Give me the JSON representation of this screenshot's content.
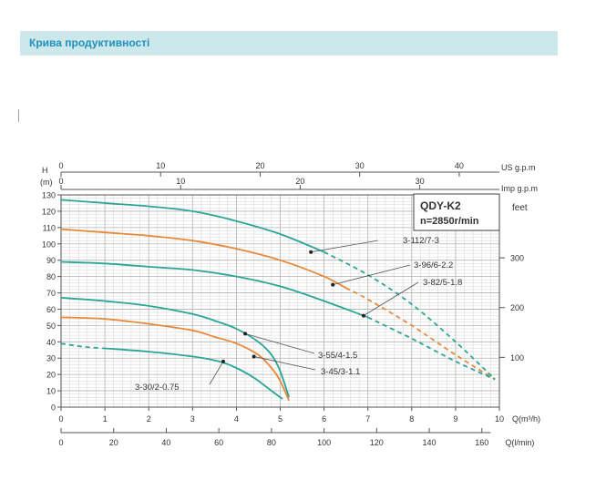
{
  "header": {
    "title": "Крива продуктивності"
  },
  "colors": {
    "teal": "#2aa596",
    "orange": "#e8893a",
    "grid_major": "#b5b5b5",
    "grid_minor": "#d4d4d4",
    "axis": "#555555",
    "header_bg": "#cde8eb",
    "header_text": "#1f8fbe"
  },
  "chart_data": {
    "type": "line",
    "title": "QDY-K2",
    "subtitle": "n=2850r/min",
    "left_axis": {
      "label_top": "H",
      "label_unit": "(m)",
      "range": [
        0,
        130
      ],
      "ticks": [
        "0",
        "10",
        "20",
        "30",
        "40",
        "50",
        "60",
        "70",
        "80",
        "90",
        "100",
        "110",
        "120",
        "130"
      ]
    },
    "right_axis": {
      "label": "feet",
      "ticks": [
        {
          "label": "100",
          "h_m": 30.48
        },
        {
          "label": "200",
          "h_m": 60.96
        },
        {
          "label": "300",
          "h_m": 91.44
        }
      ]
    },
    "x_axis_q_m3h": {
      "label": "Q(m³/h)",
      "range": [
        0,
        10
      ],
      "ticks": [
        "0",
        "1",
        "2",
        "3",
        "4",
        "5",
        "6",
        "7",
        "8",
        "9",
        "10"
      ]
    },
    "x_axis_q_lmin": {
      "label": "Q(l/min)",
      "ticks": [
        {
          "label": "0",
          "q": 0
        },
        {
          "label": "20",
          "q": 1.2
        },
        {
          "label": "40",
          "q": 2.4
        },
        {
          "label": "60",
          "q": 3.6
        },
        {
          "label": "80",
          "q": 4.8
        },
        {
          "label": "100",
          "q": 6.0
        },
        {
          "label": "120",
          "q": 7.2
        },
        {
          "label": "140",
          "q": 8.4
        },
        {
          "label": "160",
          "q": 9.6
        }
      ]
    },
    "top_axis_us_gpm": {
      "label": "US g.p.m",
      "ticks": [
        {
          "label": "0",
          "q": 0
        },
        {
          "label": "10",
          "q": 2.271
        },
        {
          "label": "20",
          "q": 4.542
        },
        {
          "label": "30",
          "q": 6.813
        },
        {
          "label": "40",
          "q": 9.084
        }
      ]
    },
    "top_axis_imp_gpm": {
      "label": "Imp g.p.m",
      "ticks": [
        {
          "label": "0",
          "q": 0
        },
        {
          "label": "10",
          "q": 2.728
        },
        {
          "label": "20",
          "q": 5.455
        },
        {
          "label": "30",
          "q": 8.183
        }
      ]
    },
    "series": [
      {
        "name": "3-112/7-3",
        "color": "teal",
        "x": [
          0,
          1,
          2,
          3,
          4,
          5,
          6,
          7,
          8,
          9,
          9.9
        ],
        "y": [
          127,
          125,
          123,
          120,
          114,
          106,
          95,
          81,
          63,
          40,
          17
        ],
        "solid_until": 6,
        "label_point": {
          "x": 5.7,
          "y": 95
        }
      },
      {
        "name": "3-96/6-2.2",
        "color": "orange",
        "x": [
          0,
          1,
          2,
          3,
          4,
          5,
          6,
          7,
          8,
          9,
          9.9
        ],
        "y": [
          109,
          107,
          105,
          102,
          97,
          90,
          80,
          66,
          50,
          32,
          17
        ],
        "solid_until": 6.5,
        "label_point": {
          "x": 6.2,
          "y": 75
        }
      },
      {
        "name": "3-82/5-1.8",
        "color": "teal",
        "x": [
          0,
          1,
          2,
          3,
          4,
          5,
          6,
          7,
          8,
          9,
          9.9
        ],
        "y": [
          89,
          88,
          86,
          84,
          80,
          74,
          65,
          55,
          42,
          28,
          17
        ],
        "solid_until": 7,
        "label_point": {
          "x": 6.9,
          "y": 56
        }
      },
      {
        "name": "3-55/4-1.5",
        "color": "teal",
        "x": [
          0,
          1,
          2,
          3,
          3.5,
          4,
          4.5,
          4.8,
          5.0,
          5.2
        ],
        "y": [
          67,
          65,
          62,
          57,
          53,
          48,
          40,
          32,
          22,
          6
        ],
        "solid_until": 5.2,
        "label_point": {
          "x": 4.2,
          "y": 45
        }
      },
      {
        "name": "3-45/3-1.1",
        "color": "orange",
        "x": [
          0,
          1,
          2,
          3,
          3.5,
          4,
          4.5,
          4.8,
          5.0,
          5.2
        ],
        "y": [
          55,
          54,
          51,
          47,
          43,
          39,
          32,
          24,
          16,
          4
        ],
        "solid_until": 5.2,
        "label_point": {
          "x": 4.4,
          "y": 31
        }
      },
      {
        "name": "3-30/2-0.75",
        "color": "teal",
        "x": [
          0,
          0.5,
          1,
          2,
          3,
          3.6,
          4,
          4.4,
          4.8,
          5.05
        ],
        "y": [
          39,
          37,
          36,
          34,
          31,
          28,
          24,
          18,
          10,
          5
        ],
        "solid_until": 5.05,
        "dashed_from_start_until": 1,
        "label_point": {
          "x": 3.7,
          "y": 28
        }
      }
    ],
    "grid": true
  }
}
